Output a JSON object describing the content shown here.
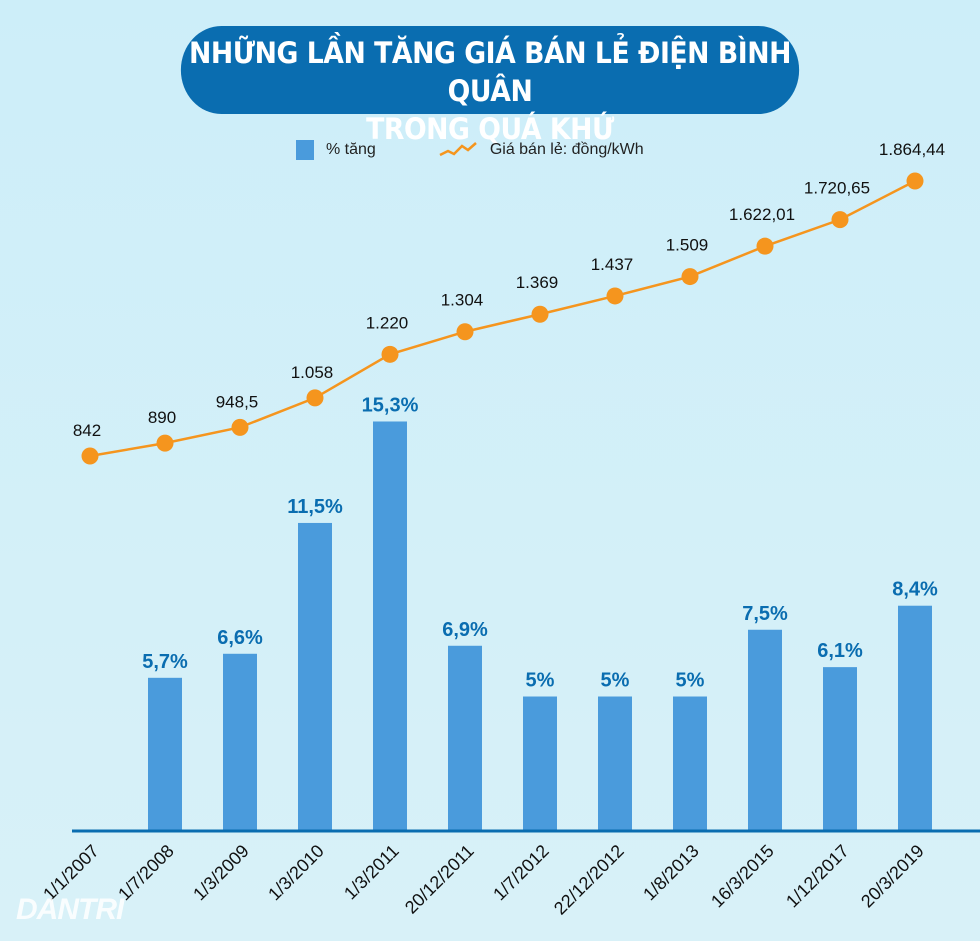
{
  "title_line1": "NHỮNG LẦN TĂNG GIÁ BÁN LẺ ĐIỆN BÌNH QUÂN",
  "title_line2": "TRONG QUÁ KHỨ",
  "logo": "DANTRI",
  "chart_data": {
    "type": "bar+line",
    "categories": [
      "1/1/2007",
      "1/7/2008",
      "1/3/2009",
      "1/3/2010",
      "1/3/2011",
      "20/12/2011",
      "1/7/2012",
      "22/12/2012",
      "1/8/2013",
      "16/3/2015",
      "1/12/2017",
      "20/3/2019"
    ],
    "series": [
      {
        "name": "% tăng",
        "type": "bar",
        "color": "#4a9bdc",
        "values": [
          null,
          5.7,
          6.6,
          11.5,
          15.3,
          6.9,
          5,
          5,
          5,
          7.5,
          6.1,
          8.4
        ],
        "labels": [
          "",
          "5,7%",
          "6,6%",
          "11,5%",
          "15,3%",
          "6,9%",
          "5%",
          "5%",
          "5%",
          "7,5%",
          "6,1%",
          "8,4%"
        ]
      },
      {
        "name": "Giá bán lẻ: đồng/kWh",
        "type": "line",
        "color": "#f5951e",
        "values": [
          842,
          890,
          948.5,
          1058,
          1220,
          1304,
          1369,
          1437,
          1509,
          1622.01,
          1720.65,
          1864.44
        ],
        "labels": [
          "842",
          "890",
          "948,5",
          "1.058",
          "1.220",
          "1.304",
          "1.369",
          "1.437",
          "1.509",
          "1.622,01",
          "1.720,65",
          "1.864,44"
        ]
      }
    ],
    "legend": "top-center",
    "grid": false
  }
}
